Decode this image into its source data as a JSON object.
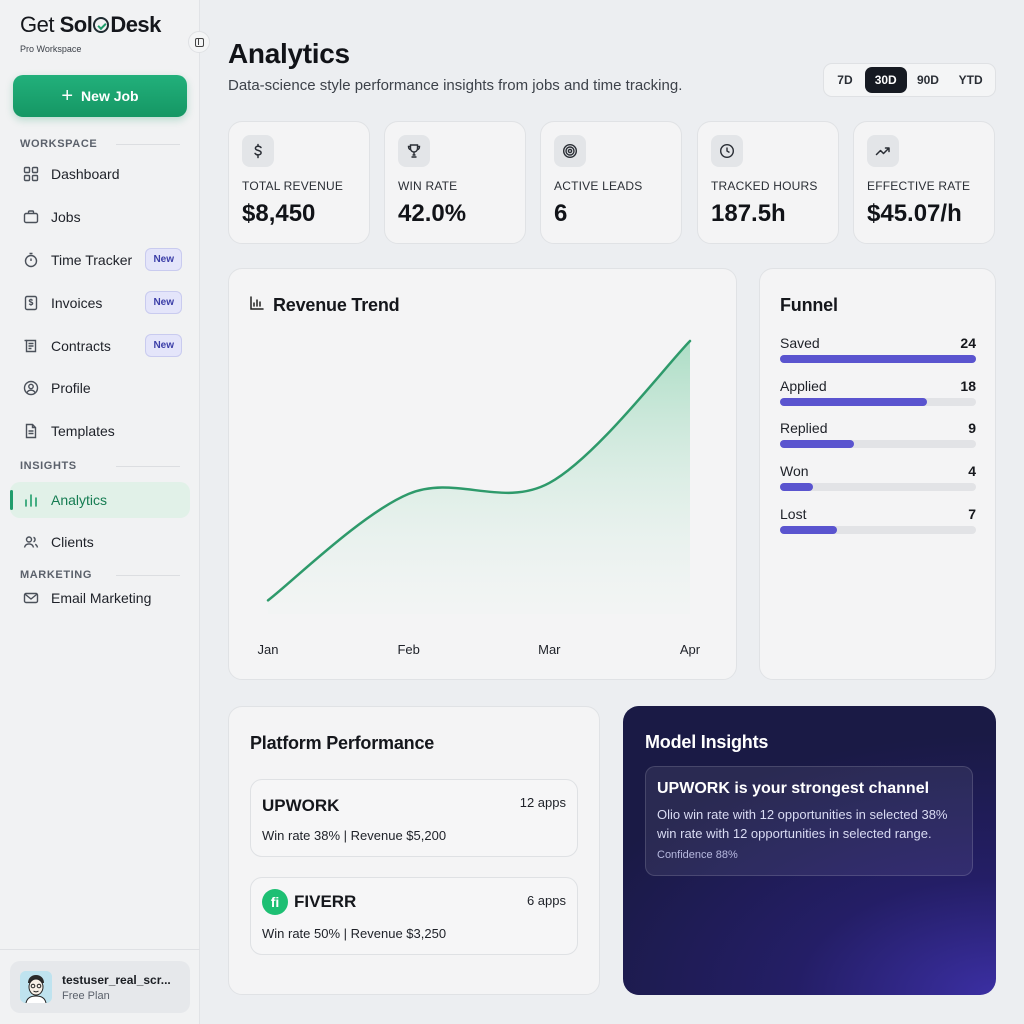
{
  "brand": {
    "prefix": "Get ",
    "bold_a": "Sol",
    "bold_b": "Desk",
    "workspace": "Pro Workspace"
  },
  "sidebar": {
    "new_job_label": "New Job",
    "sections": {
      "workspace": "WORKSPACE",
      "insights": "INSIGHTS",
      "marketing": "MARKETING"
    },
    "items": [
      {
        "label": "Dashboard",
        "icon": "grid-icon"
      },
      {
        "label": "Jobs",
        "icon": "briefcase-icon"
      },
      {
        "label": "Time Tracker",
        "icon": "stopwatch-icon",
        "badge": "New"
      },
      {
        "label": "Invoices",
        "icon": "invoice-icon",
        "badge": "New"
      },
      {
        "label": "Contracts",
        "icon": "contract-icon",
        "badge": "New"
      },
      {
        "label": "Profile",
        "icon": "user-circle-icon"
      },
      {
        "label": "Templates",
        "icon": "document-icon"
      },
      {
        "label": "Analytics",
        "icon": "bar-chart-icon",
        "active": true
      },
      {
        "label": "Clients",
        "icon": "users-icon"
      },
      {
        "label": "Email Marketing",
        "icon": "mail-icon"
      }
    ],
    "user": {
      "name": "testuser_real_scr...",
      "plan": "Free Plan"
    }
  },
  "header": {
    "title": "Analytics",
    "subtitle": "Data-science style performance insights from jobs and time tracking.",
    "ranges": [
      "7D",
      "30D",
      "90D",
      "YTD"
    ],
    "active_range": "30D"
  },
  "kpis": [
    {
      "label": "TOTAL REVENUE",
      "value": "$8,450",
      "icon": "dollar-icon"
    },
    {
      "label": "WIN RATE",
      "value": "42.0%",
      "icon": "trophy-icon"
    },
    {
      "label": "ACTIVE LEADS",
      "value": "6",
      "icon": "target-icon"
    },
    {
      "label": "TRACKED HOURS",
      "value": "187.5h",
      "icon": "clock-icon"
    },
    {
      "label": "EFFECTIVE RATE",
      "value": "$45.07/h",
      "icon": "trend-up-icon"
    }
  ],
  "revenue_trend": {
    "title": "Revenue Trend"
  },
  "funnel": {
    "title": "Funnel",
    "max": 24,
    "stages": [
      {
        "label": "Saved",
        "value": 24
      },
      {
        "label": "Applied",
        "value": 18
      },
      {
        "label": "Replied",
        "value": 9
      },
      {
        "label": "Won",
        "value": 4
      },
      {
        "label": "Lost",
        "value": 7
      }
    ]
  },
  "platform_performance": {
    "title": "Platform Performance",
    "platforms": [
      {
        "name": "UPWORK",
        "apps": "12 apps",
        "stats": "Win rate 38% | Revenue $5,200",
        "logo": ""
      },
      {
        "name": "FIVERR",
        "apps": "6 apps",
        "stats": "Win rate 50% | Revenue $3,250",
        "logo": "fi"
      }
    ]
  },
  "model_insights": {
    "title": "Model Insights",
    "headline": "UPWORK is your strongest channel",
    "body": "Olio win rate with 12 opportunities in selected 38% win rate with 12 opportunities in selected range.",
    "confidence": "Confidence 88%"
  },
  "chart_data": {
    "type": "area",
    "title": "Revenue Trend",
    "categories": [
      "Jan",
      "Feb",
      "Mar",
      "Apr"
    ],
    "values": [
      5,
      44,
      48,
      100
    ],
    "xlabel": "",
    "ylabel": "",
    "ylim": [
      0,
      100
    ],
    "grid": false,
    "colors": {
      "line": "#2e9a6b",
      "fill": "#bfe4d2"
    }
  }
}
